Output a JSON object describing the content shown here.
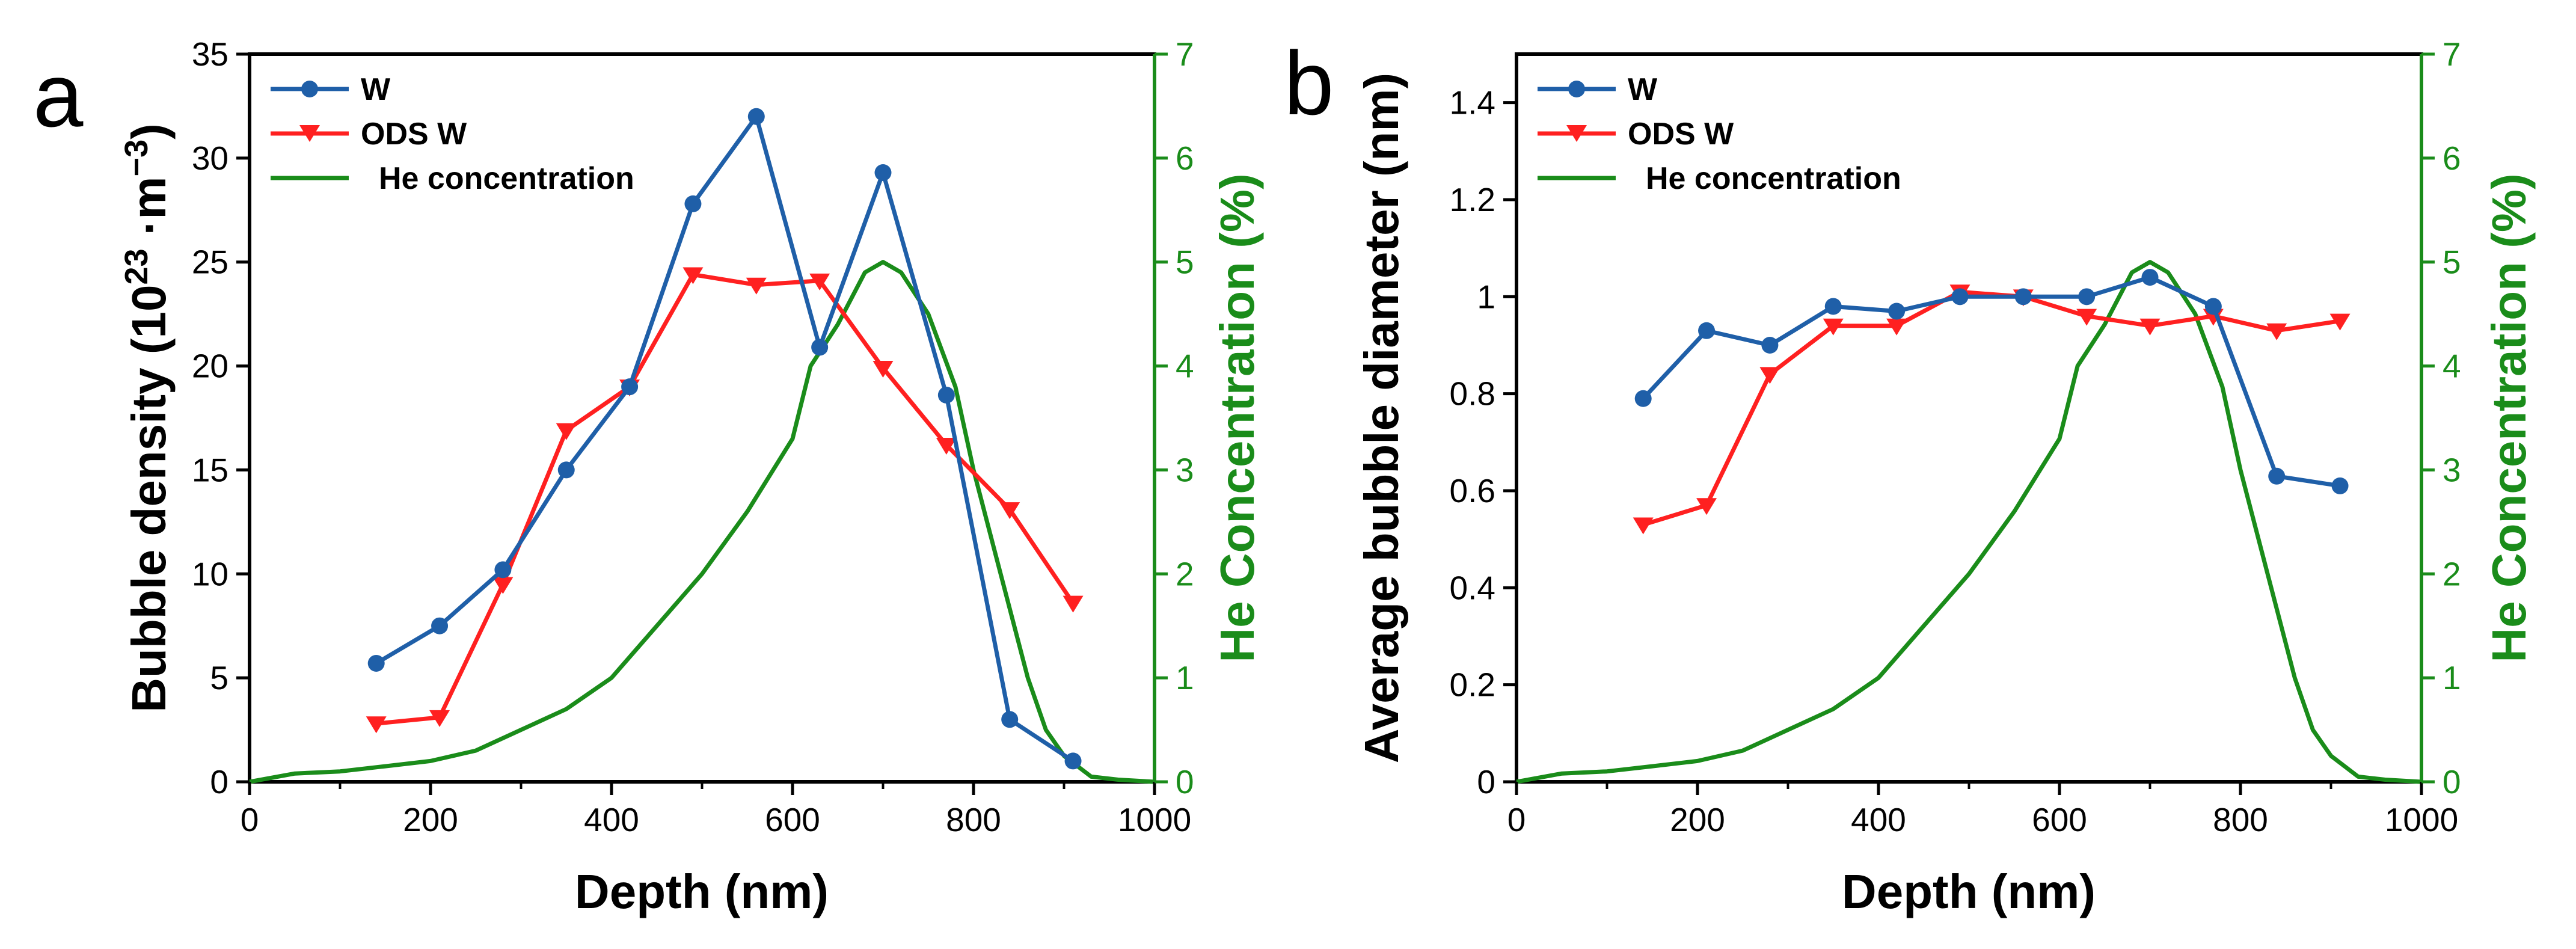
{
  "chart_data": [
    {
      "type": "line",
      "panel": "a",
      "xlabel": "Depth (nm)",
      "ylabel": "Bubble density (10",
      "ylabel_sup1": "23",
      "ylabel_mid": " ·m",
      "ylabel_sup2": "−3",
      "ylabel_end": ")",
      "y2label": "He Concentration (%)",
      "xlim": [
        0,
        1000
      ],
      "ylim": [
        0,
        35
      ],
      "y2lim": [
        0,
        7
      ],
      "xticks": [
        "0",
        "200",
        "400",
        "600",
        "800",
        "1000"
      ],
      "yticks": [
        "0",
        "5",
        "10",
        "15",
        "20",
        "25",
        "30",
        "35"
      ],
      "y2ticks": [
        "0",
        "1",
        "2",
        "3",
        "4",
        "5",
        "6",
        "7"
      ],
      "legend": [
        "W",
        "ODS W",
        "He concentration"
      ],
      "series": [
        {
          "name": "W",
          "color": "#1f5fa8",
          "marker": "circle",
          "x": [
            140,
            210,
            280,
            350,
            420,
            490,
            560,
            630,
            700,
            770,
            840,
            910
          ],
          "y": [
            5.7,
            7.5,
            10.2,
            15.0,
            19.0,
            27.8,
            32.0,
            20.9,
            29.3,
            18.6,
            3.0,
            1.0
          ]
        },
        {
          "name": "ODS W",
          "color": "#ff2020",
          "marker": "triangle-down",
          "x": [
            140,
            210,
            280,
            350,
            420,
            490,
            560,
            630,
            700,
            770,
            840,
            910
          ],
          "y": [
            2.8,
            3.1,
            9.5,
            16.9,
            19.0,
            24.4,
            23.9,
            24.1,
            19.9,
            16.2,
            13.1,
            8.6
          ]
        },
        {
          "name": "He concentration",
          "color": "#1a8c1a",
          "axis": "right",
          "x": [
            0,
            50,
            100,
            150,
            200,
            250,
            300,
            350,
            400,
            450,
            500,
            550,
            600,
            620,
            650,
            680,
            700,
            720,
            750,
            780,
            800,
            830,
            860,
            880,
            900,
            930,
            960,
            1000
          ],
          "y": [
            0,
            0.08,
            0.1,
            0.15,
            0.2,
            0.3,
            0.5,
            0.7,
            1.0,
            1.5,
            2.0,
            2.6,
            3.3,
            4.0,
            4.4,
            4.9,
            5.0,
            4.9,
            4.5,
            3.8,
            3.0,
            2.0,
            1.0,
            0.5,
            0.25,
            0.05,
            0.02,
            0
          ]
        }
      ]
    },
    {
      "type": "line",
      "panel": "b",
      "xlabel": "Depth (nm)",
      "ylabel": "Average bubble diameter (nm)",
      "y2label": "He Concentration (%)",
      "xlim": [
        0,
        1000
      ],
      "ylim": [
        0,
        1.5
      ],
      "y2lim": [
        0,
        7
      ],
      "xticks": [
        "0",
        "200",
        "400",
        "600",
        "800",
        "1000"
      ],
      "yticks": [
        "0",
        "0.2",
        "0.4",
        "0.6",
        "0.8",
        "1",
        "1.2",
        "1.4"
      ],
      "y2ticks": [
        "0",
        "1",
        "2",
        "3",
        "4",
        "5",
        "6",
        "7"
      ],
      "legend": [
        "W",
        "ODS W",
        "He concentration"
      ],
      "series": [
        {
          "name": "W",
          "color": "#1f5fa8",
          "marker": "circle",
          "x": [
            140,
            210,
            280,
            350,
            420,
            490,
            560,
            630,
            700,
            770,
            840,
            910
          ],
          "y": [
            0.79,
            0.93,
            0.9,
            0.98,
            0.97,
            1.0,
            1.0,
            1.0,
            1.04,
            0.98,
            0.63,
            0.61
          ]
        },
        {
          "name": "ODS W",
          "color": "#ff2020",
          "marker": "triangle-down",
          "x": [
            140,
            210,
            280,
            350,
            420,
            490,
            560,
            630,
            700,
            770,
            840,
            910
          ],
          "y": [
            0.53,
            0.57,
            0.84,
            0.94,
            0.94,
            1.01,
            1.0,
            0.96,
            0.94,
            0.96,
            0.93,
            0.95
          ]
        },
        {
          "name": "He concentration",
          "color": "#1a8c1a",
          "axis": "right",
          "x": [
            0,
            50,
            100,
            150,
            200,
            250,
            300,
            350,
            400,
            450,
            500,
            550,
            600,
            620,
            650,
            680,
            700,
            720,
            750,
            780,
            800,
            830,
            860,
            880,
            900,
            930,
            960,
            1000
          ],
          "y": [
            0,
            0.08,
            0.1,
            0.15,
            0.2,
            0.3,
            0.5,
            0.7,
            1.0,
            1.5,
            2.0,
            2.6,
            3.3,
            4.0,
            4.4,
            4.9,
            5.0,
            4.9,
            4.5,
            3.8,
            3.0,
            2.0,
            1.0,
            0.5,
            0.25,
            0.05,
            0.02,
            0
          ]
        }
      ]
    }
  ]
}
